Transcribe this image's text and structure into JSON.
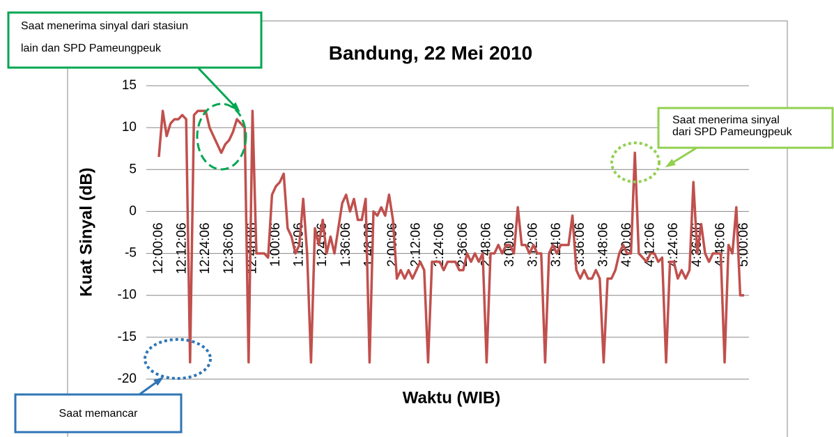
{
  "chart_data": {
    "type": "line",
    "title": "Bandung, 22 Mei 2010",
    "x_label": "Waktu (WIB)",
    "y_label": "Kuat Sinyal (dB)",
    "categories": [
      "12:00:06",
      null,
      null,
      null,
      null,
      null,
      "12:12:06",
      null,
      null,
      null,
      null,
      null,
      "12:24:06",
      null,
      null,
      null,
      null,
      null,
      "12:36:06",
      null,
      null,
      null,
      null,
      null,
      "12:48:06",
      null,
      null,
      null,
      null,
      null,
      "1:00:06",
      null,
      null,
      null,
      null,
      null,
      "1:12:06",
      null,
      null,
      null,
      null,
      null,
      "1:24:06",
      null,
      null,
      null,
      null,
      null,
      "1:36:06",
      null,
      null,
      null,
      null,
      null,
      "1:48:06",
      null,
      null,
      null,
      null,
      null,
      "2:00:06",
      null,
      null,
      null,
      null,
      null,
      "2:12:06",
      null,
      null,
      null,
      null,
      null,
      "2:24:06",
      null,
      null,
      null,
      null,
      null,
      "2:36:06",
      null,
      null,
      null,
      null,
      null,
      "2:48:06",
      null,
      null,
      null,
      null,
      null,
      "3:00:06",
      null,
      null,
      null,
      null,
      null,
      "3:12:06",
      null,
      null,
      null,
      null,
      null,
      "3:24:06",
      null,
      null,
      null,
      null,
      null,
      "3:36:06",
      null,
      null,
      null,
      null,
      null,
      "3:48:06",
      null,
      null,
      null,
      null,
      null,
      "4:00:06",
      null,
      null,
      null,
      null,
      null,
      "4:12:06",
      null,
      null,
      null,
      null,
      null,
      "4:24:06",
      null,
      null,
      null,
      null,
      null,
      "4:36:06",
      null,
      null,
      null,
      null,
      null,
      "4:48:06",
      null,
      null,
      null,
      null,
      null,
      "5:00:06"
    ],
    "values": [
      6.5,
      12,
      9,
      10.5,
      11,
      11,
      11.5,
      11,
      -18,
      11.5,
      12,
      12,
      12,
      10,
      9,
      8,
      7,
      8,
      8.5,
      9.5,
      11,
      10.5,
      10,
      -18,
      12,
      -5,
      -5,
      -5,
      -5.5,
      2,
      3,
      3.5,
      4.5,
      -2,
      -3,
      -5,
      -4,
      1.5,
      -5,
      -18,
      -2,
      -4,
      -1,
      -5,
      -3,
      -5,
      -2,
      1,
      2,
      0,
      1.5,
      -1,
      -1,
      1.5,
      -18,
      0,
      -0.5,
      0.5,
      -0.5,
      2,
      -1,
      -8,
      -7,
      -8,
      -7,
      -8,
      -7,
      -6,
      -7,
      -18,
      -6,
      -6,
      -6,
      -7,
      -6,
      -6,
      -6,
      -7,
      -7,
      -5,
      -6,
      -5,
      -6,
      -5,
      -18,
      -5,
      -5,
      -4,
      -5,
      -4,
      -4,
      -5,
      0.5,
      -4,
      -4,
      -5,
      -4,
      -5,
      -5,
      -18,
      -5,
      -4,
      -5,
      -4,
      -4,
      -4,
      -0.5,
      -7,
      -8,
      -7,
      -8,
      -8,
      -7,
      -8,
      -18,
      -8,
      -8,
      -7,
      -5,
      -4,
      -5,
      -5,
      7,
      -5,
      -5.5,
      -6,
      -5,
      -5,
      -6,
      -5.5,
      -18,
      -6,
      -6,
      -8,
      -7,
      -8,
      -7,
      3.5,
      -5,
      -1.5,
      -5,
      -6,
      -5,
      -5,
      -5,
      -18,
      -4,
      -5,
      0.5,
      -10,
      -10
    ],
    "color": "#c0504d",
    "ylim": [
      -20,
      15
    ],
    "yticks": [
      -20,
      -15,
      -10,
      -5,
      0,
      5,
      10,
      15
    ],
    "grid": true,
    "annotations": [
      {
        "lines": [
          "Saat menerima sinyal dari stasiun",
          "lain dan SPD Pameungpeuk"
        ],
        "color": "#00a651"
      },
      {
        "lines": [
          "Saat menerima sinyal",
          "dari SPD Pameungpeuk"
        ],
        "color": "#92d050"
      },
      {
        "lines": [
          "Saat memancar"
        ],
        "color": "#2e75b6"
      }
    ]
  }
}
